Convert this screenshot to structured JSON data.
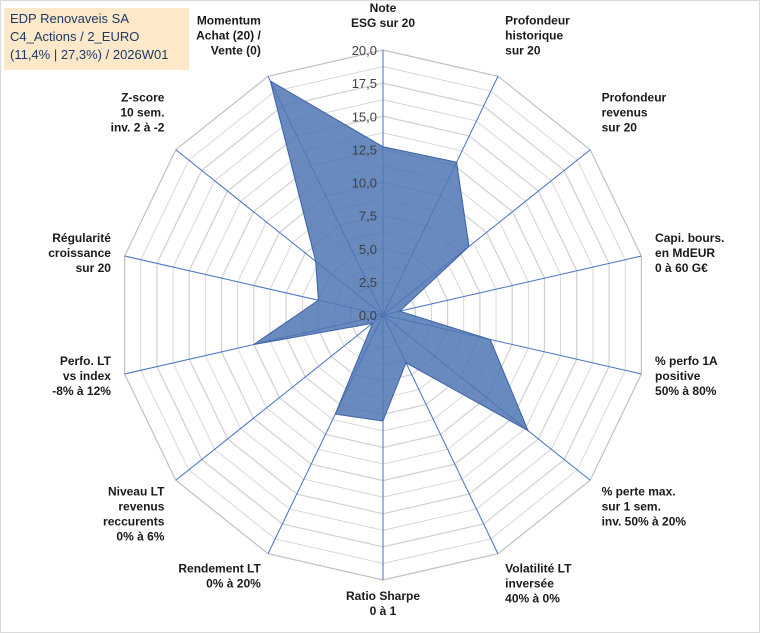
{
  "title_box": {
    "line1": "EDP Renovaveis SA",
    "line2": "C4_Actions / 2_EURO",
    "line3": "(11,4% | 27,3%) / 2026W01"
  },
  "chart_data": {
    "type": "radar",
    "title": "EDP Renovaveis SA",
    "rlim": [
      0,
      20
    ],
    "ticks": [
      "0,0",
      "2,5",
      "5,0",
      "7,5",
      "10,0",
      "12,5",
      "15,0",
      "17,5",
      "20,0"
    ],
    "tick_values": [
      0,
      2.5,
      5,
      7.5,
      10,
      12.5,
      15,
      17.5,
      20
    ],
    "axes": [
      {
        "label": [
          "Note",
          "ESG sur 20"
        ],
        "value": 12.7
      },
      {
        "label": [
          "Profondeur",
          "historique",
          "sur 20"
        ],
        "value": 12.8
      },
      {
        "label": [
          "Profondeur",
          "revenus",
          "sur 20"
        ],
        "value": 8.3
      },
      {
        "label": [
          "Capi. bours.",
          "en MdEUR",
          "0 à 60 G€"
        ],
        "value": 1.3
      },
      {
        "label": [
          "% perfo 1A",
          "positive",
          "50% à 80%"
        ],
        "value": 8.3
      },
      {
        "label": [
          "% perte max.",
          "sur 1 sem.",
          "inv. 50% à 20%"
        ],
        "value": 14.0
      },
      {
        "label": [
          "Volatilité LT",
          "inversée",
          "40% à 0%"
        ],
        "value": 4.0
      },
      {
        "label": [
          "Ratio Sharpe",
          "0 à 1"
        ],
        "value": 8.0
      },
      {
        "label": [
          "Rendement LT",
          "0% à 20%"
        ],
        "value": 8.3
      },
      {
        "label": [
          "Niveau LT",
          "revenus",
          "reccurents",
          "0% à 6%"
        ],
        "value": 1.0
      },
      {
        "label": [
          "Perfo. LT",
          "vs index",
          "-8% à 12%"
        ],
        "value": 10.0
      },
      {
        "label": [
          "Régularité",
          "croissance",
          "sur 20"
        ],
        "value": 5.0
      },
      {
        "label": [
          "Z-score",
          "10 sem.",
          "inv. 2 à -2"
        ],
        "value": 6.5
      },
      {
        "label": [
          "Momentum",
          "Achat (20) /",
          "Vente (0)"
        ],
        "value": 19.6
      }
    ],
    "series": [
      {
        "name": "EDP Renovaveis SA",
        "color": "#4f76b3"
      }
    ],
    "grid_color": "#d0d0d0",
    "axis_color": "#4472c4"
  }
}
